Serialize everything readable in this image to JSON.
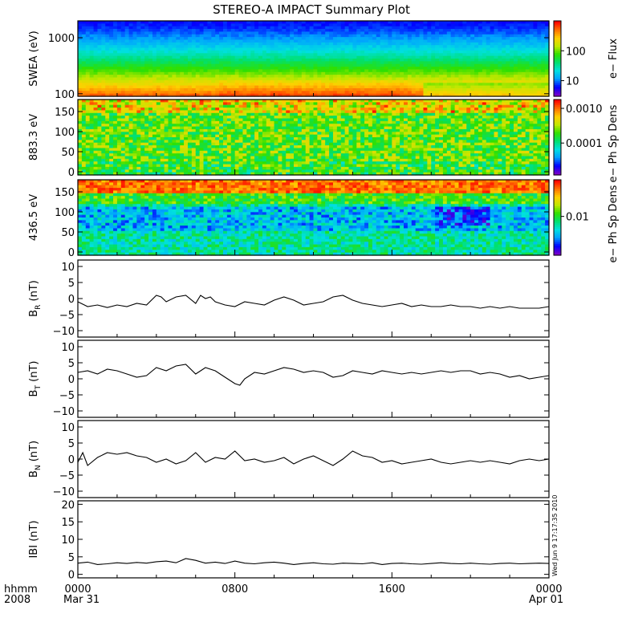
{
  "title": "STEREO-A IMPACT Summary Plot",
  "footer": {
    "time_format_label": "hhmm",
    "year": "2008",
    "start_date": "Mar 31",
    "end_date": "Apr 01"
  },
  "timestamp": "Wed Jun 9 17:17:35 2010",
  "colors": {
    "axes": "#000000",
    "line": "#000000",
    "spectrogram_scale": [
      "#7a00c8",
      "#0000ff",
      "#00a0ff",
      "#00e0e0",
      "#00e070",
      "#30e000",
      "#c0e800",
      "#ffd000",
      "#ff7000",
      "#ff0000"
    ]
  },
  "chart_data": [
    {
      "type": "heatmap",
      "name": "swea_flux",
      "ylabel": "SWEA (eV)",
      "y_scale": "log",
      "ylim": [
        90,
        2000
      ],
      "yticks": [
        {
          "value": 100,
          "label": "100"
        },
        {
          "value": 1000,
          "label": "1000"
        }
      ],
      "x": [
        "0000",
        "0800",
        "1600",
        "0000"
      ],
      "xlim_hours": [
        0,
        24
      ],
      "colorbar": {
        "label": "e− Flux",
        "scale": "log",
        "range": [
          3,
          1000
        ],
        "ticks": [
          {
            "value": 10,
            "label": "10"
          },
          {
            "value": 100,
            "label": "100"
          }
        ]
      }
    },
    {
      "type": "heatmap",
      "name": "pad_883",
      "ylabel": "883.3 eV",
      "ylim": [
        -8,
        180
      ],
      "yticks": [
        {
          "value": 0,
          "label": "0"
        },
        {
          "value": 50,
          "label": "50"
        },
        {
          "value": 100,
          "label": "100"
        },
        {
          "value": 150,
          "label": "150"
        }
      ],
      "xlim_hours": [
        0,
        24
      ],
      "colorbar": {
        "label": "e− Ph Sp Dens",
        "scale": "log",
        "range": [
          1.2e-05,
          0.0018
        ],
        "ticks": [
          {
            "value": 0.0001,
            "label": "0.0001"
          },
          {
            "value": 0.001,
            "label": "0.0010"
          }
        ]
      }
    },
    {
      "type": "heatmap",
      "name": "pad_436",
      "ylabel": "436.5 eV",
      "ylim": [
        -8,
        180
      ],
      "yticks": [
        {
          "value": 0,
          "label": "0"
        },
        {
          "value": 50,
          "label": "50"
        },
        {
          "value": 100,
          "label": "100"
        },
        {
          "value": 150,
          "label": "150"
        }
      ],
      "xlim_hours": [
        0,
        24
      ],
      "colorbar": {
        "label": "e− Ph Sp Dens",
        "scale": "log",
        "range": [
          0.0015,
          0.06
        ],
        "ticks": [
          {
            "value": 0.01,
            "label": "0.01"
          }
        ]
      }
    },
    {
      "type": "line",
      "name": "BR",
      "ylabel_main": "B",
      "ylabel_sub": "R",
      "ylabel_unit": " (nT)",
      "ylim": [
        -12,
        12
      ],
      "yticks": [
        {
          "value": 10,
          "label": "10"
        },
        {
          "value": 5,
          "label": "5"
        },
        {
          "value": 0,
          "label": "0"
        },
        {
          "value": -5,
          "label": "−5"
        },
        {
          "value": -10,
          "label": "−10"
        }
      ],
      "x_hours": [
        0,
        0.5,
        1,
        1.5,
        2,
        2.5,
        3,
        3.5,
        4,
        4.25,
        4.5,
        5,
        5.5,
        6,
        6.25,
        6.5,
        6.75,
        7,
        7.5,
        8,
        8.5,
        9,
        9.5,
        10,
        10.5,
        11,
        11.5,
        12,
        12.5,
        13,
        13.5,
        14,
        14.5,
        15,
        15.5,
        16,
        16.5,
        17,
        17.5,
        18,
        18.5,
        19,
        19.5,
        20,
        20.5,
        21,
        21.5,
        22,
        22.5,
        23,
        23.5,
        24
      ],
      "values": [
        -1,
        -2.5,
        -2,
        -2.8,
        -2,
        -2.5,
        -1.5,
        -2,
        1,
        0.5,
        -1,
        0.5,
        1,
        -1.5,
        1,
        0,
        0.5,
        -1,
        -2,
        -2.5,
        -1,
        -1.5,
        -2,
        -0.5,
        0.5,
        -0.5,
        -2,
        -1.5,
        -1,
        0.5,
        1,
        -0.5,
        -1.5,
        -2,
        -2.5,
        -2,
        -1.5,
        -2.5,
        -2,
        -2.5,
        -2.5,
        -2,
        -2.5,
        -2.5,
        -3,
        -2.5,
        -3,
        -2.5,
        -3,
        -3,
        -3,
        -2.5
      ]
    },
    {
      "type": "line",
      "name": "BT",
      "ylabel_main": "B",
      "ylabel_sub": "T",
      "ylabel_unit": " (nT)",
      "ylim": [
        -12,
        12
      ],
      "yticks": [
        {
          "value": 10,
          "label": "10"
        },
        {
          "value": 5,
          "label": "5"
        },
        {
          "value": 0,
          "label": "0"
        },
        {
          "value": -5,
          "label": "−5"
        },
        {
          "value": -10,
          "label": "−10"
        }
      ],
      "x_hours": [
        0,
        0.5,
        1,
        1.5,
        2,
        2.5,
        3,
        3.5,
        4,
        4.5,
        5,
        5.5,
        6,
        6.5,
        7,
        7.5,
        8,
        8.25,
        8.5,
        9,
        9.5,
        10,
        10.5,
        11,
        11.5,
        12,
        12.5,
        13,
        13.5,
        14,
        14.5,
        15,
        15.5,
        16,
        16.5,
        17,
        17.5,
        18,
        18.5,
        19,
        19.5,
        20,
        20.5,
        21,
        21.5,
        22,
        22.5,
        23,
        23.5,
        24
      ],
      "values": [
        2,
        2.5,
        1.5,
        3,
        2.5,
        1.5,
        0.5,
        1,
        3.5,
        2.5,
        4,
        4.5,
        1.5,
        3.5,
        2.5,
        0.5,
        -1.5,
        -2,
        0,
        2,
        1.5,
        2.5,
        3.5,
        3,
        2,
        2.5,
        2,
        0.5,
        1,
        2.5,
        2,
        1.5,
        2.5,
        2,
        1.5,
        2,
        1.5,
        2,
        2.5,
        2,
        2.5,
        2.5,
        1.5,
        2,
        1.5,
        0.5,
        1,
        0,
        0.5,
        1
      ]
    },
    {
      "type": "line",
      "name": "BN",
      "ylabel_main": "B",
      "ylabel_sub": "N",
      "ylabel_unit": " (nT)",
      "ylim": [
        -12,
        12
      ],
      "yticks": [
        {
          "value": 10,
          "label": "10"
        },
        {
          "value": 5,
          "label": "5"
        },
        {
          "value": 0,
          "label": "0"
        },
        {
          "value": -5,
          "label": "−5"
        },
        {
          "value": -10,
          "label": "−10"
        }
      ],
      "x_hours": [
        0,
        0.25,
        0.5,
        1,
        1.5,
        2,
        2.5,
        3,
        3.5,
        4,
        4.5,
        5,
        5.5,
        6,
        6.5,
        7,
        7.5,
        8,
        8.5,
        9,
        9.5,
        10,
        10.5,
        11,
        11.5,
        12,
        12.5,
        13,
        13.5,
        14,
        14.5,
        15,
        15.5,
        16,
        16.5,
        17,
        17.5,
        18,
        18.5,
        19,
        19.5,
        20,
        20.5,
        21,
        21.5,
        22,
        22.5,
        23,
        23.5,
        24
      ],
      "values": [
        -1,
        2,
        -2,
        0.5,
        2,
        1.5,
        2,
        1,
        0.5,
        -1,
        0,
        -1.5,
        -0.5,
        2,
        -1,
        0.5,
        0,
        2.5,
        -0.5,
        0,
        -1,
        -0.5,
        0.5,
        -1.5,
        0,
        1,
        -0.5,
        -2,
        0,
        2.5,
        1,
        0.5,
        -1,
        -0.5,
        -1.5,
        -1,
        -0.5,
        0,
        -1,
        -1.5,
        -1,
        -0.5,
        -1,
        -0.5,
        -1,
        -1.5,
        -0.5,
        0,
        -0.5,
        0
      ]
    },
    {
      "type": "line",
      "name": "B_magnitude",
      "ylabel_main": "IBI",
      "ylabel_sub": "",
      "ylabel_unit": " (nT)",
      "ylim": [
        -1,
        21
      ],
      "yticks": [
        {
          "value": 20,
          "label": "20"
        },
        {
          "value": 15,
          "label": "15"
        },
        {
          "value": 10,
          "label": "10"
        },
        {
          "value": 5,
          "label": "5"
        },
        {
          "value": 0,
          "label": "0"
        }
      ],
      "x_hours": [
        0,
        0.5,
        1,
        1.5,
        2,
        2.5,
        3,
        3.5,
        4,
        4.5,
        5,
        5.5,
        6,
        6.5,
        7,
        7.5,
        8,
        8.5,
        9,
        9.5,
        10,
        10.5,
        11,
        11.5,
        12,
        12.5,
        13,
        13.5,
        14,
        14.5,
        15,
        15.5,
        16,
        16.5,
        17,
        17.5,
        18,
        18.5,
        19,
        19.5,
        20,
        20.5,
        21,
        21.5,
        22,
        22.5,
        23,
        23.5,
        24
      ],
      "values": [
        3.2,
        3.5,
        2.8,
        3,
        3.3,
        3.1,
        3.4,
        3.2,
        3.6,
        3.8,
        3.3,
        4.5,
        4,
        3.2,
        3.5,
        3.1,
        3.8,
        3.2,
        3,
        3.3,
        3.5,
        3.2,
        2.8,
        3.1,
        3.3,
        3,
        2.9,
        3.2,
        3.1,
        3,
        3.3,
        2.8,
        3.1,
        3.2,
        3,
        2.9,
        3.1,
        3.3,
        3.1,
        3,
        3.2,
        3,
        2.9,
        3.1,
        3.2,
        3,
        3.1,
        3.2,
        3.1
      ]
    }
  ]
}
